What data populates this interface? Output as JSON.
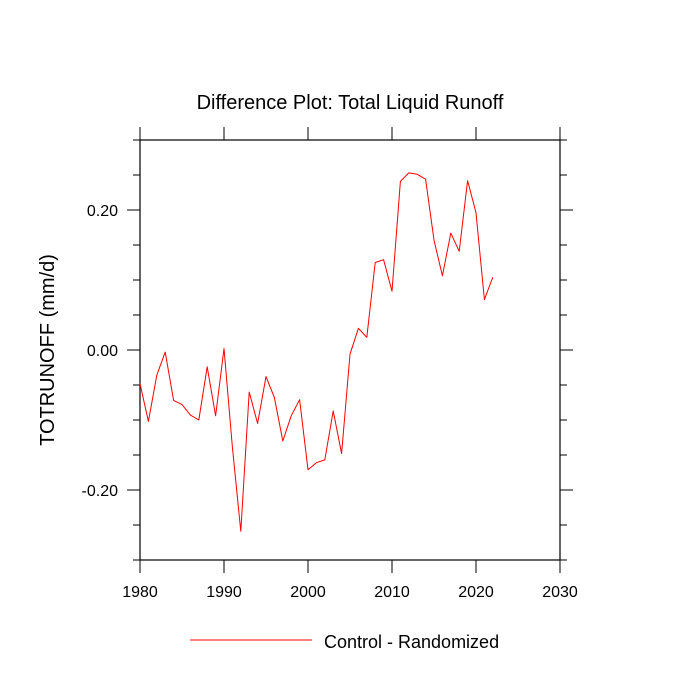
{
  "chart_data": {
    "type": "line",
    "title": "Difference Plot: Total Liquid Runoff",
    "xlabel": "",
    "ylabel": "TOTRUNOFF  (mm/d)",
    "xlim": [
      1980,
      2030
    ],
    "ylim": [
      -0.3,
      0.3
    ],
    "x_ticks": [
      1980,
      1990,
      2000,
      2010,
      2020,
      2030
    ],
    "x_tick_labels": [
      "1980",
      "1990",
      "2000",
      "2010",
      "2020",
      "2030"
    ],
    "y_ticks": [
      -0.2,
      0.0,
      0.2
    ],
    "y_tick_labels": [
      "-0.20",
      "0.00",
      "0.20"
    ],
    "grid": false,
    "legend_position": "bottom",
    "series": [
      {
        "name": "Control - Randomized",
        "color": "#ff0000",
        "x": [
          1980,
          1981,
          1982,
          1983,
          1984,
          1985,
          1986,
          1987,
          1988,
          1989,
          1990,
          1991,
          1992,
          1993,
          1994,
          1995,
          1996,
          1997,
          1998,
          1999,
          2000,
          2001,
          2002,
          2003,
          2004,
          2005,
          2006,
          2007,
          2008,
          2009,
          2010,
          2011,
          2012,
          2013,
          2014,
          2015,
          2016,
          2017,
          2018,
          2019,
          2020,
          2021,
          2022
        ],
        "y": [
          -0.048,
          -0.102,
          -0.036,
          -0.003,
          -0.072,
          -0.078,
          -0.093,
          -0.1,
          -0.024,
          -0.094,
          0.002,
          -0.139,
          -0.259,
          -0.06,
          -0.105,
          -0.038,
          -0.068,
          -0.13,
          -0.094,
          -0.071,
          -0.171,
          -0.161,
          -0.157,
          -0.087,
          -0.148,
          -0.006,
          0.031,
          0.018,
          0.125,
          0.129,
          0.084,
          0.241,
          0.253,
          0.251,
          0.244,
          0.157,
          0.106,
          0.167,
          0.141,
          0.242,
          0.196,
          0.072,
          0.104
        ]
      }
    ]
  }
}
